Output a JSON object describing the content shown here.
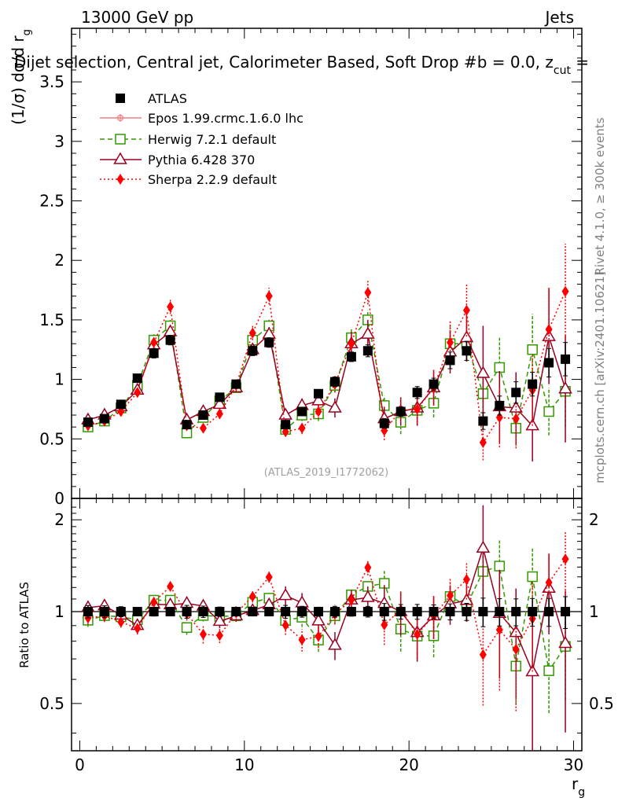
{
  "header": {
    "energy_label": "13000 GeV pp",
    "category_label": "Jets",
    "title": "Dijet selection, Central jet, Calorimeter Based, Soft Drop #b = 0.0, z",
    "title_sub": "cut",
    "title_tail": " =",
    "side_label_rivet": "Rivet 4.1.0, ≥ 300k events",
    "side_label_mcplots": "mcplots.cern.ch [arXiv:2401.10621]",
    "analysis_id": "(ATLAS_2019_I1772062)"
  },
  "colors": {
    "ATLAS": "#000000",
    "Epos": "#f08080",
    "Herwig": "#339900",
    "Pythia": "#990022",
    "Sherpa": "#ff0000"
  },
  "chart_data": {
    "type": "scatter",
    "x": [
      0.5,
      1.5,
      2.5,
      3.5,
      4.5,
      5.5,
      6.5,
      7.5,
      8.5,
      9.5,
      10.5,
      11.5,
      12.5,
      13.5,
      14.5,
      15.5,
      16.5,
      17.5,
      18.5,
      19.5,
      20.5,
      21.5,
      22.5,
      23.5,
      24.5,
      25.5,
      26.5,
      27.5,
      28.5,
      29.5
    ],
    "xlim": [
      -0.5,
      30.5
    ],
    "xlabel": "r",
    "xlabel_sub": "g",
    "main": {
      "ylabel": "(1/σ) dσ/d r",
      "ylabel_sub": "g",
      "ylim": [
        0,
        3.95
      ],
      "yticks": [
        0,
        0.5,
        1,
        1.5,
        2,
        2.5,
        3,
        3.5
      ],
      "ytick_labels": [
        "0",
        "0.5",
        "1",
        "1.5",
        "2",
        "2.5",
        "3",
        "3.5"
      ]
    },
    "ratio": {
      "ylabel": "Ratio to ATLAS",
      "ylim": [
        0.35,
        2.35
      ],
      "yticks": [
        0.5,
        1,
        2
      ],
      "ytick_labels": [
        "0.5",
        "1",
        "2"
      ]
    },
    "xticks": [
      0,
      10,
      20,
      30
    ],
    "xtick_labels": [
      "0",
      "10",
      "20",
      "30"
    ],
    "legend": [
      "ATLAS",
      "Epos 1.99.crmc.1.6.0 lhc",
      "Herwig 7.2.1 default",
      "Pythia 6.428 370",
      "Sherpa 2.2.9 default"
    ],
    "series": [
      {
        "name": "ATLAS",
        "key": "ATLAS",
        "marker": "square-filled",
        "line": "none",
        "values": [
          0.64,
          0.67,
          0.79,
          1.01,
          1.22,
          1.33,
          0.62,
          0.7,
          0.85,
          0.96,
          1.24,
          1.31,
          0.62,
          0.73,
          0.88,
          0.98,
          1.19,
          1.24,
          0.63,
          0.73,
          0.89,
          0.96,
          1.16,
          1.24,
          0.65,
          0.78,
          0.89,
          0.96,
          1.14,
          1.17
        ],
        "errors": [
          0.03,
          0.03,
          0.03,
          0.03,
          0.04,
          0.04,
          0.03,
          0.03,
          0.03,
          0.03,
          0.04,
          0.04,
          0.03,
          0.03,
          0.03,
          0.04,
          0.04,
          0.05,
          0.04,
          0.04,
          0.05,
          0.05,
          0.07,
          0.08,
          0.07,
          0.08,
          0.09,
          0.1,
          0.12,
          0.14
        ]
      },
      {
        "name": "Epos 1.99.crmc.1.6.0 lhc",
        "key": "Epos",
        "marker": "cross",
        "line": "solid",
        "values": [],
        "errors": []
      },
      {
        "name": "Herwig 7.2.1 default",
        "key": "Herwig",
        "marker": "square-open",
        "line": "dashed",
        "values": [
          0.6,
          0.65,
          0.76,
          0.95,
          1.33,
          1.45,
          0.55,
          0.68,
          0.82,
          0.93,
          1.33,
          1.45,
          0.58,
          0.7,
          0.71,
          0.95,
          1.35,
          1.5,
          0.78,
          0.64,
          0.74,
          0.8,
          1.3,
          1.3,
          0.88,
          1.1,
          0.59,
          1.25,
          0.73,
          0.9
        ],
        "errors": [
          0.03,
          0.03,
          0.03,
          0.04,
          0.05,
          0.05,
          0.03,
          0.03,
          0.03,
          0.04,
          0.05,
          0.05,
          0.04,
          0.05,
          0.06,
          0.06,
          0.07,
          0.08,
          0.08,
          0.1,
          0.12,
          0.12,
          0.15,
          0.15,
          0.2,
          0.25,
          0.15,
          0.3,
          0.2,
          0.3
        ]
      },
      {
        "name": "Pythia 6.428 370",
        "key": "Pythia",
        "marker": "triangle-open",
        "line": "solid",
        "values": [
          0.66,
          0.7,
          0.77,
          0.91,
          1.29,
          1.4,
          0.66,
          0.73,
          0.79,
          0.93,
          1.25,
          1.38,
          0.7,
          0.78,
          0.82,
          0.76,
          1.3,
          1.38,
          0.67,
          0.73,
          0.76,
          0.93,
          1.23,
          1.35,
          1.05,
          0.77,
          0.76,
          0.61,
          1.36,
          0.92
        ],
        "errors": [
          0.03,
          0.03,
          0.03,
          0.04,
          0.05,
          0.05,
          0.03,
          0.03,
          0.04,
          0.04,
          0.05,
          0.06,
          0.05,
          0.06,
          0.08,
          0.08,
          0.1,
          0.12,
          0.1,
          0.12,
          0.15,
          0.15,
          0.18,
          0.2,
          0.4,
          0.3,
          0.3,
          0.3,
          0.4,
          0.45
        ]
      },
      {
        "name": "Sherpa 2.2.9 default",
        "key": "Sherpa",
        "marker": "diamond-filled",
        "line": "dotted",
        "values": [
          0.61,
          0.65,
          0.73,
          0.89,
          1.31,
          1.61,
          0.61,
          0.59,
          0.71,
          0.95,
          1.39,
          1.7,
          0.56,
          0.59,
          0.73,
          0.96,
          1.3,
          1.73,
          0.57,
          0.74,
          0.75,
          0.93,
          1.31,
          1.58,
          0.47,
          0.68,
          0.67,
          0.91,
          1.42,
          1.74
        ],
        "errors": [
          0.03,
          0.03,
          0.03,
          0.04,
          0.05,
          0.06,
          0.03,
          0.04,
          0.04,
          0.05,
          0.06,
          0.07,
          0.04,
          0.05,
          0.06,
          0.07,
          0.08,
          0.1,
          0.08,
          0.1,
          0.12,
          0.15,
          0.18,
          0.22,
          0.15,
          0.25,
          0.25,
          0.3,
          0.35,
          0.4
        ]
      }
    ]
  }
}
